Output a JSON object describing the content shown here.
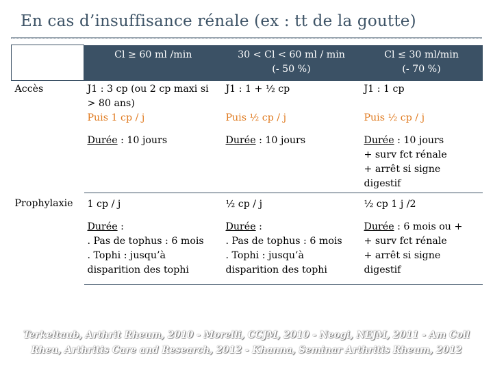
{
  "title": "En cas d’insuffisance rénale (ex : tt de la goutte)",
  "headers": [
    "",
    "Cl ≥ 60 ml /min",
    "30 < Cl < 60 ml / min\n(- 50 %)",
    "Cl ≤ 30 ml/min\n(- 70 %)"
  ],
  "rows": {
    "acces": {
      "label": "Accès",
      "dose": {
        "c1": "J1 : 3 cp (ou 2 cp maxi si > 80 ans)",
        "c2": "J1 : 1 + ½ cp",
        "c3": "J1 : 1 cp"
      },
      "then": {
        "c1": "Puis 1 cp / j",
        "c2": "Puis ½ cp / j",
        "c3": "Puis ½ cp / j"
      },
      "duree_label": "Durée",
      "duree": {
        "c1": " : 10 jours",
        "c2": " : 10 jours",
        "c3": " : 10 jours\n+ surv fct rénale\n+ arrêt si signe digestif"
      }
    },
    "prophylaxie": {
      "label": "Prophylaxie",
      "dose": {
        "c1": "1 cp / j",
        "c2": "½ cp / j",
        "c3": "½ cp 1 j /2"
      },
      "duree_label": "Durée",
      "duree": {
        "c1": " :\n. Pas de tophus : 6 mois\n. Tophi : jusqu’à disparition des tophi",
        "c2": " :\n. Pas de tophus : 6 mois\n. Tophi : jusqu’à disparition des tophi",
        "c3": " : 6 mois ou +\n+ surv fct rénale\n+ arrêt si signe digestif"
      }
    }
  },
  "footer": "Terkeltaub, Arthrit Rheum, 2010 - Morelli, CCJM, 2010 - Neogi, NEJM, 2011 - Am Coll Rheu, Arthritis Care and Research, 2012 - Khanna, Seminar Arthritis Rheum, 2012"
}
